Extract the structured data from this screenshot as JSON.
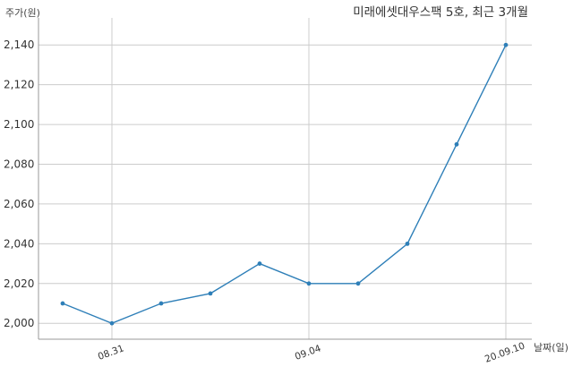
{
  "chart_data": {
    "type": "line",
    "title": "미래에셋대우스팩 5호, 최근 3개월",
    "ylabel": "주가(원)",
    "xlabel": "날짜(일)",
    "ylim": [
      1992,
      2150
    ],
    "y_ticks": [
      2000,
      2020,
      2040,
      2060,
      2080,
      2100,
      2120,
      2140
    ],
    "y_tick_labels": [
      "2,000",
      "2,020",
      "2,040",
      "2,060",
      "2,080",
      "2,100",
      "2,120",
      "2,140"
    ],
    "x_tick_labels": [
      "08.31",
      "09.04",
      "20.09.10"
    ],
    "x_tick_index": [
      1,
      5,
      9
    ],
    "series": [
      {
        "color": "#2e7fb8",
        "values": [
          2010,
          2000,
          2010,
          2015,
          2030,
          2020,
          2020,
          2040,
          2090,
          2140
        ]
      }
    ],
    "grid": true,
    "legend": "none"
  }
}
